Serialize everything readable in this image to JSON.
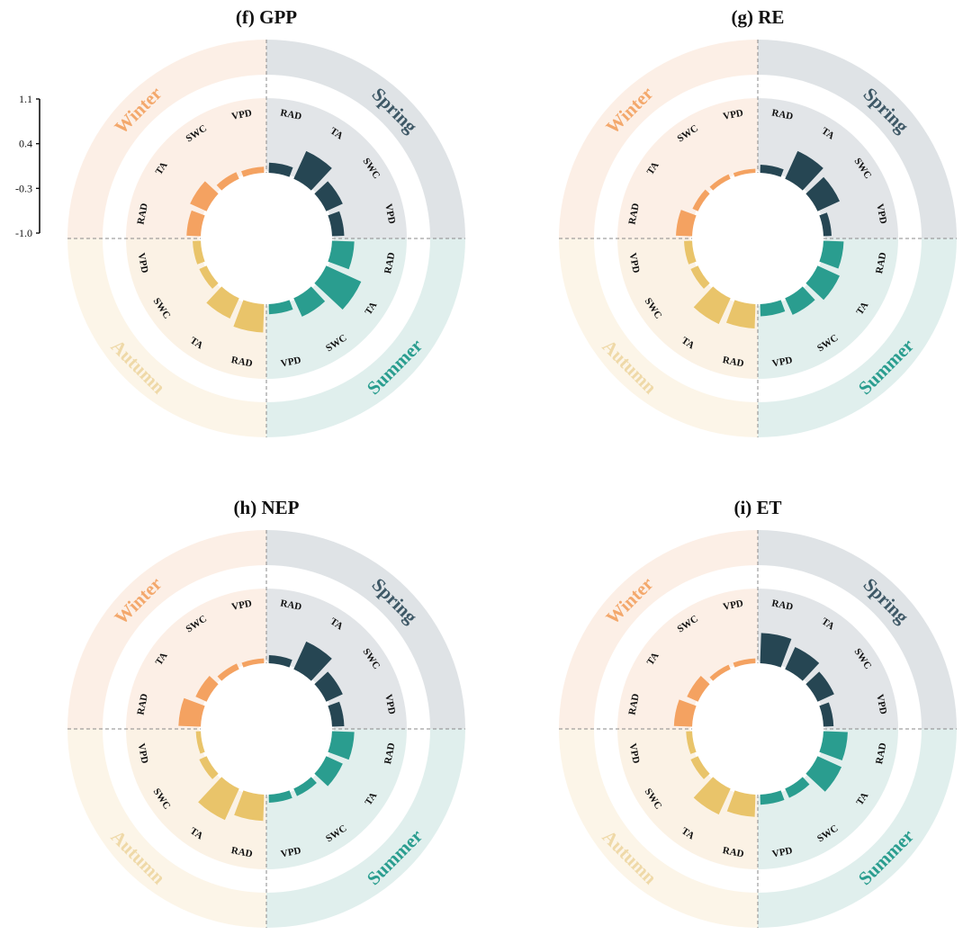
{
  "scale": {
    "ticks": [
      "1.1",
      "0.4",
      "-0.3",
      "-1.0"
    ],
    "range": [
      -1.0,
      1.1
    ]
  },
  "seasons": [
    {
      "name": "Spring",
      "outer_color": "#dfe3e6",
      "inner_color": "#e2e5e8",
      "label_color": "#3e5866",
      "bar_color": "#264653"
    },
    {
      "name": "Summer",
      "outer_color": "#e0efed",
      "inner_color": "#e1efed",
      "label_color": "#2a9d8f",
      "bar_color": "#2a9d8f"
    },
    {
      "name": "Autumn",
      "outer_color": "#fcf5e8",
      "inner_color": "#fbf2e5",
      "label_color": "#efd9a8",
      "bar_color": "#e9c46a"
    },
    {
      "name": "Winter",
      "outer_color": "#fcefe6",
      "inner_color": "#fcefe6",
      "label_color": "#f3a86c",
      "bar_color": "#f4a261"
    }
  ],
  "chart_data": [
    {
      "type": "radial-bar",
      "title": "(f) GPP",
      "variables": [
        "RAD",
        "TA",
        "SWC",
        "VPD"
      ],
      "series": [
        {
          "name": "Spring",
          "values": [
            0.25,
            0.75,
            0.45,
            0.3
          ]
        },
        {
          "name": "Summer",
          "values": [
            0.55,
            0.95,
            0.5,
            0.25
          ]
        },
        {
          "name": "Autumn",
          "values": [
            0.7,
            0.55,
            0.2,
            0.2
          ]
        },
        {
          "name": "Winter",
          "values": [
            0.35,
            0.45,
            0.18,
            0.15
          ]
        }
      ]
    },
    {
      "type": "radial-bar",
      "title": "(g) RE",
      "variables": [
        "RAD",
        "TA",
        "SWC",
        "VPD"
      ],
      "series": [
        {
          "name": "Spring",
          "values": [
            0.2,
            0.75,
            0.6,
            0.2
          ]
        },
        {
          "name": "Summer",
          "values": [
            0.5,
            0.6,
            0.45,
            0.3
          ]
        },
        {
          "name": "Autumn",
          "values": [
            0.6,
            0.7,
            0.2,
            0.2
          ]
        },
        {
          "name": "Winter",
          "values": [
            0.4,
            0.15,
            0.12,
            0.1
          ]
        }
      ]
    },
    {
      "type": "radial-bar",
      "title": "(h) NEP",
      "variables": [
        "RAD",
        "TA",
        "SWC",
        "VPD"
      ],
      "series": [
        {
          "name": "Spring",
          "values": [
            0.2,
            0.75,
            0.45,
            0.3
          ]
        },
        {
          "name": "Summer",
          "values": [
            0.55,
            0.45,
            0.2,
            0.2
          ]
        },
        {
          "name": "Autumn",
          "values": [
            0.65,
            0.85,
            0.2,
            0.12
          ]
        },
        {
          "name": "Winter",
          "values": [
            0.55,
            0.3,
            0.15,
            0.12
          ]
        }
      ]
    },
    {
      "type": "radial-bar",
      "title": "(i) ET",
      "variables": [
        "RAD",
        "TA",
        "SWC",
        "VPD"
      ],
      "series": [
        {
          "name": "Spring",
          "values": [
            0.75,
            0.6,
            0.45,
            0.25
          ]
        },
        {
          "name": "Summer",
          "values": [
            0.6,
            0.65,
            0.25,
            0.25
          ]
        },
        {
          "name": "Autumn",
          "values": [
            0.55,
            0.7,
            0.2,
            0.15
          ]
        },
        {
          "name": "Winter",
          "values": [
            0.45,
            0.3,
            0.12,
            0.12
          ]
        }
      ]
    }
  ]
}
